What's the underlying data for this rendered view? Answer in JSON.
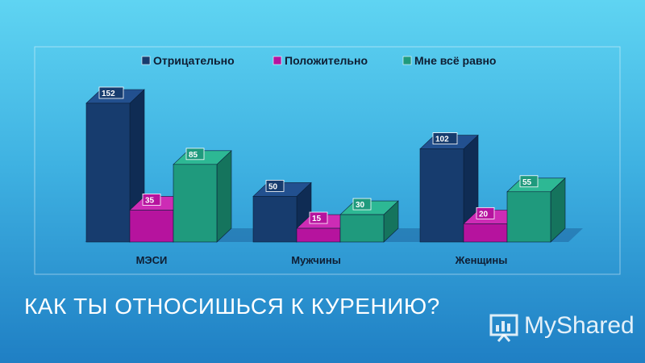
{
  "slide": {
    "title": "КАК ТЫ ОТНОСИШЬСЯ К КУРЕНИЮ?"
  },
  "logo": {
    "text": "MyShared",
    "icon": "presentation-chart-icon"
  },
  "colors": {
    "series": [
      "#173c6e",
      "#b6139e",
      "#1f9a7d"
    ],
    "series_side": [
      "#0f2c54",
      "#8a0e79",
      "#15745d"
    ],
    "series_top": [
      "#22508f",
      "#cd2cb5",
      "#2db894"
    ]
  },
  "chart_data": {
    "type": "bar",
    "title": "",
    "xlabel": "",
    "ylabel": "",
    "categories": [
      "МЭСИ",
      "Мужчины",
      "Женщины"
    ],
    "series": [
      {
        "name": "Отрицательно",
        "values": [
          152,
          50,
          102
        ]
      },
      {
        "name": "Положительно",
        "values": [
          35,
          15,
          20
        ]
      },
      {
        "name": "Мне всё равно",
        "values": [
          85,
          30,
          55
        ]
      }
    ],
    "ylim": [
      0,
      160
    ],
    "grid": false,
    "legend": "top",
    "style": "3d-clustered"
  }
}
